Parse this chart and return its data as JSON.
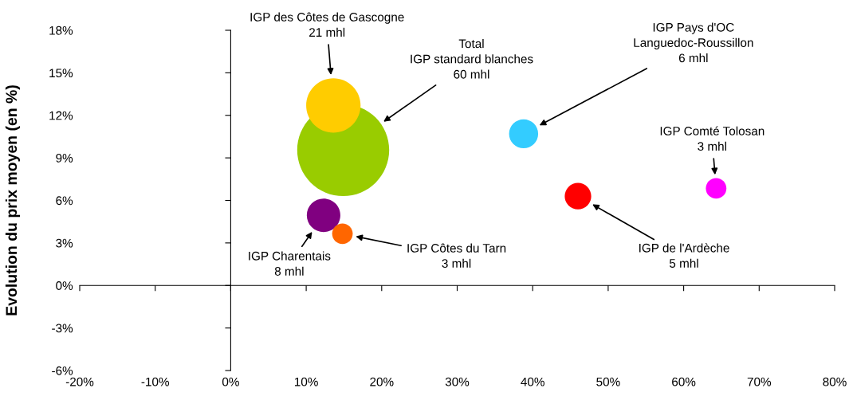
{
  "chart_data": {
    "type": "bubble",
    "ylabel": "Evolution du prix moyen (en %)",
    "x": [
      14.9,
      13.6,
      38.8,
      64.3,
      46.0,
      12.3,
      14.8
    ],
    "values": [
      9.55,
      12.7,
      10.7,
      6.85,
      6.3,
      4.95,
      3.65
    ],
    "sizes": [
      1,
      0.35,
      0.1,
      0.05,
      0.083,
      0.133,
      0.05
    ],
    "colors": [
      "#99cc00",
      "#ffcc00",
      "#33ccff",
      "#ff00ff",
      "#ff0000",
      "#800080",
      "#ff6600"
    ],
    "xlim": [
      -20,
      80
    ],
    "xticks": [
      {
        "value": -20,
        "label": "-20%"
      },
      {
        "value": -10,
        "label": "-10%"
      },
      {
        "value": 0,
        "label": "0%"
      },
      {
        "value": 10,
        "label": "10%"
      },
      {
        "value": 20,
        "label": "20%"
      },
      {
        "value": 30,
        "label": "30%"
      },
      {
        "value": 40,
        "label": "40%"
      },
      {
        "value": 50,
        "label": "50%"
      },
      {
        "value": 60,
        "label": "60%"
      },
      {
        "value": 70,
        "label": "70%"
      },
      {
        "value": 80,
        "label": "80%"
      }
    ],
    "ylim": [
      -6,
      18
    ],
    "yticks": [
      {
        "value": -6,
        "label": "-6%"
      },
      {
        "value": -3,
        "label": "-3%"
      },
      {
        "value": 0,
        "label": "0%"
      },
      {
        "value": 3,
        "label": "3%"
      },
      {
        "value": 6,
        "label": "6%"
      },
      {
        "value": 9,
        "label": "9%"
      },
      {
        "value": 12,
        "label": "12%"
      },
      {
        "value": 15,
        "label": "15%"
      },
      {
        "value": 18,
        "label": "18%"
      }
    ],
    "annotations": [
      "Total\nIGP standard blanches\n60 mhl",
      "IGP des Côtes de Gascogne\n21 mhl",
      "IGP Pays d'OC\nLanguedoc-Roussillon\n6 mhl",
      "IGP Comté Tolosan\n3 mhl",
      "IGP de l'Ardèche\n5 mhl",
      "IGP Charentais\n8 mhl",
      "IGP Côtes du Tarn\n3 mhl"
    ]
  }
}
